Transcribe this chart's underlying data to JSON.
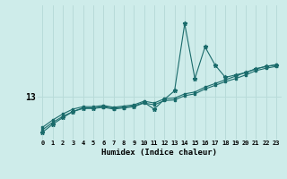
{
  "xlabel": "Humidex (Indice chaleur)",
  "ylabel": "",
  "background_color": "#ceecea",
  "grid_color": "#b8dbd9",
  "line_color": "#1a6b6b",
  "x_ticks": [
    0,
    1,
    2,
    3,
    4,
    5,
    6,
    7,
    8,
    9,
    10,
    11,
    12,
    13,
    14,
    15,
    16,
    17,
    18,
    19,
    20,
    21,
    22,
    23
  ],
  "ytick_label": "13",
  "ytick_value": 13.0,
  "xlim": [
    -0.5,
    23.5
  ],
  "ylim": [
    12.3,
    14.5
  ],
  "line1_y": [
    12.5,
    12.62,
    12.72,
    12.8,
    12.84,
    12.84,
    12.86,
    12.83,
    12.85,
    12.87,
    12.93,
    12.9,
    12.97,
    12.98,
    13.05,
    13.08,
    13.16,
    13.22,
    13.28,
    13.34,
    13.4,
    13.46,
    13.5,
    13.53
  ],
  "line2_y": [
    12.46,
    12.58,
    12.68,
    12.76,
    12.81,
    12.81,
    12.83,
    12.8,
    12.82,
    12.84,
    12.9,
    12.87,
    12.94,
    12.95,
    13.02,
    13.05,
    13.13,
    13.19,
    13.25,
    13.3,
    13.36,
    13.43,
    13.47,
    13.5
  ],
  "spiky_y": [
    12.42,
    12.55,
    12.66,
    12.76,
    12.82,
    12.82,
    12.84,
    12.82,
    12.83,
    12.85,
    12.91,
    12.8,
    12.96,
    13.1,
    14.2,
    13.3,
    13.82,
    13.52,
    13.32,
    13.36,
    13.4,
    13.46,
    13.5,
    13.52
  ]
}
